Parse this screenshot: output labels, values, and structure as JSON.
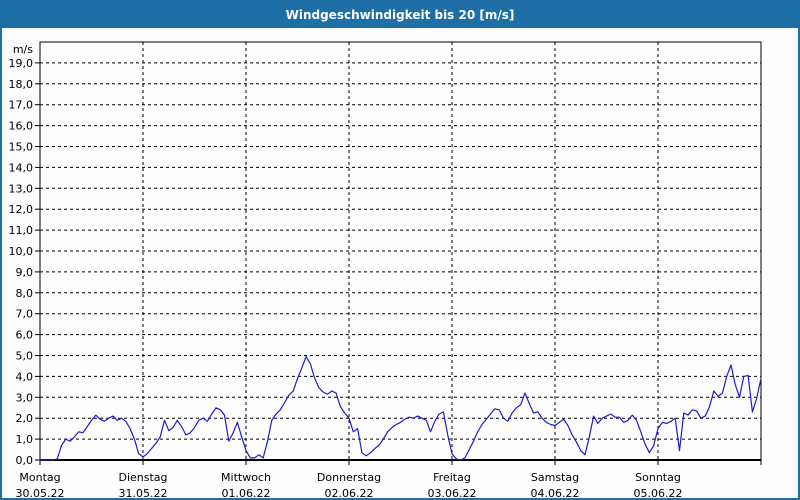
{
  "window": {
    "title": "Windgeschwindigkeit bis 20 [m/s]"
  },
  "colors": {
    "titlebar_bg": "#1d6fa5",
    "title_text": "#ffffff",
    "frame_border": "#1d6fa5",
    "plot_border": "#000000",
    "gridline": "#000000",
    "tick": "#000000",
    "label_text": "#000000",
    "series_line": "#1c1ccd",
    "plot_background": "#fdfdfd"
  },
  "chart_data": {
    "type": "line",
    "title": "Windgeschwindigkeit bis 20 [m/s]",
    "y_axis": {
      "unit_label": "m/s",
      "min": 0,
      "max": 20,
      "tick_step": 1,
      "tick_labels": [
        "0,0",
        "1,0",
        "2,0",
        "3,0",
        "4,0",
        "5,0",
        "6,0",
        "7,0",
        "8,0",
        "9,0",
        "10,0",
        "11,0",
        "12,0",
        "13,0",
        "14,0",
        "15,0",
        "16,0",
        "17,0",
        "18,0",
        "19,0"
      ],
      "grid": "dashed horizontal lines at every 1.0 m/s"
    },
    "x_axis": {
      "span_days": 7,
      "days": [
        {
          "name": "Montag",
          "date": "30.05.22"
        },
        {
          "name": "Dienstag",
          "date": "31.05.22"
        },
        {
          "name": "Mittwoch",
          "date": "01.06.22"
        },
        {
          "name": "Donnerstag",
          "date": "02.06.22"
        },
        {
          "name": "Freitag",
          "date": "03.06.22"
        },
        {
          "name": "Samstag",
          "date": "04.06.22"
        },
        {
          "name": "Sonntag",
          "date": "05.06.22"
        }
      ],
      "grid": "dashed vertical line at each day boundary"
    },
    "legend": "none",
    "series": [
      {
        "name": "Windgeschwindigkeit",
        "unit": "m/s",
        "sample_interval_hours": 1,
        "start": "Montag 30.05.22 00:00",
        "values": [
          0,
          0,
          0,
          0,
          0.05,
          0.7,
          1.0,
          0.9,
          1.1,
          1.35,
          1.3,
          1.6,
          1.9,
          2.15,
          1.95,
          1.85,
          2.0,
          2.1,
          1.9,
          2.0,
          1.85,
          1.5,
          1.0,
          0.3,
          0.15,
          0.3,
          0.55,
          0.8,
          1.1,
          1.9,
          1.4,
          1.55,
          1.9,
          1.6,
          1.2,
          1.3,
          1.55,
          1.9,
          2.0,
          1.85,
          2.2,
          2.5,
          2.4,
          2.15,
          0.9,
          1.3,
          1.8,
          1.1,
          0.45,
          0.1,
          0.1,
          0.25,
          0.1,
          0.9,
          1.9,
          2.2,
          2.4,
          2.75,
          3.1,
          3.3,
          3.9,
          4.4,
          4.95,
          4.6,
          3.9,
          3.45,
          3.25,
          3.15,
          3.3,
          3.2,
          2.55,
          2.25,
          2.0,
          1.35,
          1.5,
          0.35,
          0.2,
          0.35,
          0.55,
          0.7,
          1.0,
          1.35,
          1.55,
          1.7,
          1.8,
          1.95,
          2.05,
          2.0,
          2.1,
          2.0,
          1.9,
          1.35,
          1.85,
          2.2,
          2.3,
          1.2,
          0.3,
          0.05,
          0.0,
          0.1,
          0.5,
          0.9,
          1.35,
          1.7,
          1.95,
          2.2,
          2.45,
          2.4,
          2.0,
          1.85,
          2.25,
          2.5,
          2.65,
          3.2,
          2.7,
          2.25,
          2.3,
          2.0,
          1.8,
          1.7,
          1.65,
          1.8,
          1.95,
          1.65,
          1.2,
          0.85,
          0.45,
          0.25,
          1.1,
          2.1,
          1.75,
          2.0,
          2.1,
          2.2,
          2.05,
          2.05,
          1.8,
          1.9,
          2.15,
          1.9,
          1.35,
          0.75,
          0.35,
          0.7,
          1.5,
          1.8,
          1.75,
          1.85,
          2.0,
          0.45,
          2.25,
          2.15,
          2.4,
          2.35,
          2.0,
          2.1,
          2.55,
          3.3,
          3.05,
          3.2,
          4.0,
          4.55,
          3.6,
          3.0,
          4.0,
          4.05,
          2.3,
          2.95,
          3.9
        ]
      }
    ]
  }
}
